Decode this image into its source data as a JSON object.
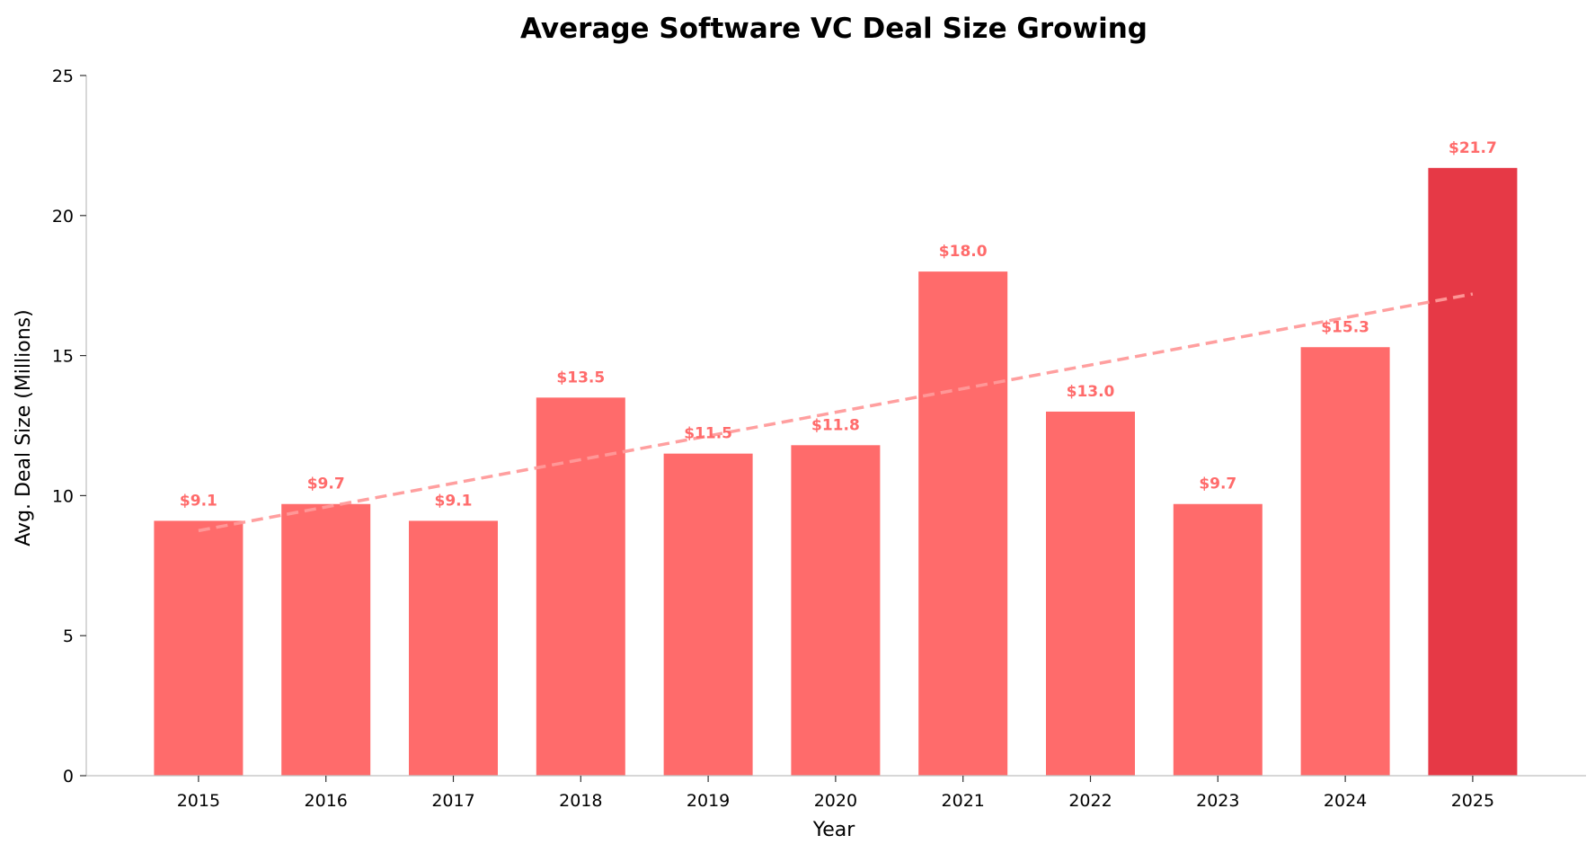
{
  "chart_data": {
    "type": "bar",
    "title": "Average Software VC Deal Size Growing",
    "xlabel": "Year",
    "ylabel": "Avg. Deal Size (Millions)",
    "categories": [
      "2015",
      "2016",
      "2017",
      "2018",
      "2019",
      "2020",
      "2021",
      "2022",
      "2023",
      "2024",
      "2025"
    ],
    "values": [
      9.1,
      9.7,
      9.1,
      13.5,
      11.5,
      11.8,
      18.0,
      13.0,
      9.7,
      15.3,
      21.7
    ],
    "data_labels": [
      "$9.1",
      "$9.7",
      "$9.1",
      "$13.5",
      "$11.5",
      "$11.8",
      "$18.0",
      "$13.0",
      "$9.7",
      "$15.3",
      "$21.7"
    ],
    "ylim": [
      0,
      25
    ],
    "yticks": [
      0,
      5,
      10,
      15,
      20,
      25
    ],
    "grid": false,
    "trendline": {
      "style": "dashed",
      "start": 8.75,
      "end": 17.2,
      "color": "#ff9a9a"
    },
    "colors": {
      "bar": "#ff6b6b",
      "highlight_bar": "#e63946",
      "highlight_index": 10,
      "label": "#ff6b6b"
    }
  }
}
